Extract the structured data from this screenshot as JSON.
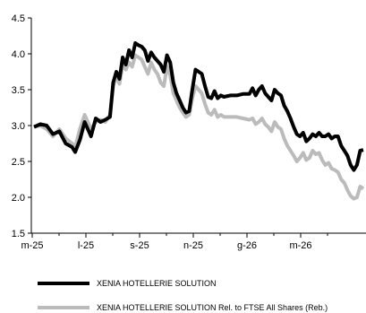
{
  "chart_data": {
    "type": "line",
    "title": "",
    "xlabel": "",
    "ylabel": "",
    "ylim": [
      1.5,
      4.5
    ],
    "yticks": [
      "1.5",
      "2.0",
      "2.5",
      "3.0",
      "3.5",
      "4.0",
      "4.5"
    ],
    "xticks": [
      "m-25",
      "l-25",
      "s-25",
      "n-25",
      "g-26",
      "m-26"
    ],
    "grid": false,
    "legend_position": "bottom",
    "colors": {
      "series_0": "#000000",
      "series_1": "#bbbbbb"
    },
    "series": [
      {
        "name": "XENIA HOTELLERIE SOLUTION",
        "points": [
          [
            0.0,
            2.98
          ],
          [
            2.0,
            3.02
          ],
          [
            4.0,
            3.0
          ],
          [
            6.0,
            2.88
          ],
          [
            8.0,
            2.92
          ],
          [
            10.0,
            2.75
          ],
          [
            12.0,
            2.7
          ],
          [
            13.0,
            2.63
          ],
          [
            14.5,
            2.8
          ],
          [
            16.0,
            3.05
          ],
          [
            18.0,
            2.85
          ],
          [
            19.5,
            3.1
          ],
          [
            21.0,
            3.05
          ],
          [
            22.5,
            3.08
          ],
          [
            24.0,
            3.12
          ],
          [
            25.0,
            3.6
          ],
          [
            26.0,
            3.75
          ],
          [
            27.0,
            3.65
          ],
          [
            28.0,
            3.95
          ],
          [
            29.0,
            3.85
          ],
          [
            30.0,
            4.05
          ],
          [
            31.0,
            3.95
          ],
          [
            32.0,
            4.15
          ],
          [
            33.0,
            4.12
          ],
          [
            34.0,
            4.1
          ],
          [
            35.0,
            4.05
          ],
          [
            36.0,
            3.9
          ],
          [
            37.0,
            4.02
          ],
          [
            38.0,
            3.95
          ],
          [
            39.0,
            3.9
          ],
          [
            40.0,
            3.85
          ],
          [
            41.0,
            3.75
          ],
          [
            42.0,
            3.98
          ],
          [
            43.0,
            3.88
          ],
          [
            44.0,
            3.6
          ],
          [
            45.0,
            3.45
          ],
          [
            46.0,
            3.35
          ],
          [
            47.0,
            3.25
          ],
          [
            48.0,
            3.18
          ],
          [
            49.0,
            3.2
          ],
          [
            50.0,
            3.5
          ],
          [
            51.0,
            3.78
          ],
          [
            52.0,
            3.75
          ],
          [
            53.0,
            3.72
          ],
          [
            54.0,
            3.55
          ],
          [
            55.0,
            3.4
          ],
          [
            56.0,
            3.38
          ],
          [
            57.0,
            3.48
          ],
          [
            58.0,
            3.38
          ],
          [
            59.0,
            3.42
          ],
          [
            60.0,
            3.4
          ],
          [
            62.0,
            3.42
          ],
          [
            64.0,
            3.42
          ],
          [
            66.0,
            3.44
          ],
          [
            68.0,
            3.44
          ],
          [
            69.0,
            3.52
          ],
          [
            70.0,
            3.42
          ],
          [
            71.0,
            3.5
          ],
          [
            72.0,
            3.55
          ],
          [
            73.0,
            3.45
          ],
          [
            74.0,
            3.4
          ],
          [
            75.0,
            3.35
          ],
          [
            76.0,
            3.5
          ],
          [
            77.0,
            3.45
          ],
          [
            78.0,
            3.42
          ],
          [
            79.0,
            3.28
          ],
          [
            80.0,
            3.2
          ],
          [
            81.0,
            3.1
          ],
          [
            82.0,
            2.98
          ],
          [
            83.0,
            2.88
          ],
          [
            84.0,
            2.85
          ],
          [
            85.0,
            2.9
          ],
          [
            86.0,
            2.78
          ],
          [
            87.0,
            2.82
          ],
          [
            88.0,
            2.88
          ],
          [
            89.0,
            2.85
          ],
          [
            90.0,
            2.9
          ],
          [
            91.0,
            2.85
          ],
          [
            92.0,
            2.85
          ],
          [
            93.0,
            2.88
          ],
          [
            94.0,
            2.82
          ],
          [
            95.0,
            2.85
          ],
          [
            96.0,
            2.85
          ],
          [
            97.0,
            2.72
          ],
          [
            98.0,
            2.65
          ],
          [
            99.0,
            2.58
          ],
          [
            100.0,
            2.45
          ],
          [
            101.0,
            2.38
          ],
          [
            102.0,
            2.45
          ],
          [
            103.0,
            2.65
          ],
          [
            104.0,
            2.66
          ]
        ]
      },
      {
        "name": "XENIA HOTELLERIE SOLUTION Rel. to FTSE All Shares (Reb.)",
        "points": [
          [
            0.0,
            2.98
          ],
          [
            2.0,
            3.0
          ],
          [
            4.0,
            2.95
          ],
          [
            6.0,
            2.85
          ],
          [
            8.0,
            2.95
          ],
          [
            10.0,
            2.82
          ],
          [
            12.0,
            2.75
          ],
          [
            13.0,
            2.7
          ],
          [
            14.5,
            2.95
          ],
          [
            16.0,
            3.15
          ],
          [
            18.0,
            2.95
          ],
          [
            19.5,
            3.05
          ],
          [
            21.0,
            3.08
          ],
          [
            22.5,
            3.05
          ],
          [
            24.0,
            3.15
          ],
          [
            25.0,
            3.55
          ],
          [
            26.0,
            3.68
          ],
          [
            27.0,
            3.58
          ],
          [
            28.0,
            3.85
          ],
          [
            29.0,
            3.78
          ],
          [
            30.0,
            3.88
          ],
          [
            31.0,
            3.82
          ],
          [
            32.0,
            3.98
          ],
          [
            33.0,
            3.95
          ],
          [
            34.0,
            3.92
          ],
          [
            35.0,
            3.82
          ],
          [
            36.0,
            3.72
          ],
          [
            37.0,
            3.88
          ],
          [
            38.0,
            3.78
          ],
          [
            39.0,
            3.72
          ],
          [
            40.0,
            3.6
          ],
          [
            41.0,
            3.55
          ],
          [
            42.0,
            3.82
          ],
          [
            43.0,
            3.7
          ],
          [
            44.0,
            3.45
          ],
          [
            45.0,
            3.35
          ],
          [
            46.0,
            3.25
          ],
          [
            47.0,
            3.18
          ],
          [
            48.0,
            3.12
          ],
          [
            49.0,
            3.15
          ],
          [
            50.0,
            3.38
          ],
          [
            51.0,
            3.55
          ],
          [
            52.0,
            3.5
          ],
          [
            53.0,
            3.45
          ],
          [
            54.0,
            3.3
          ],
          [
            55.0,
            3.18
          ],
          [
            56.0,
            3.15
          ],
          [
            57.0,
            3.22
          ],
          [
            58.0,
            3.12
          ],
          [
            59.0,
            3.15
          ],
          [
            60.0,
            3.12
          ],
          [
            62.0,
            3.12
          ],
          [
            64.0,
            3.12
          ],
          [
            66.0,
            3.1
          ],
          [
            68.0,
            3.08
          ],
          [
            69.0,
            3.1
          ],
          [
            70.0,
            3.02
          ],
          [
            71.0,
            3.05
          ],
          [
            72.0,
            3.1
          ],
          [
            73.0,
            3.02
          ],
          [
            74.0,
            2.98
          ],
          [
            75.0,
            2.92
          ],
          [
            76.0,
            3.05
          ],
          [
            77.0,
            2.98
          ],
          [
            78.0,
            2.95
          ],
          [
            79.0,
            2.82
          ],
          [
            80.0,
            2.72
          ],
          [
            81.0,
            2.65
          ],
          [
            82.0,
            2.58
          ],
          [
            83.0,
            2.5
          ],
          [
            84.0,
            2.55
          ],
          [
            85.0,
            2.62
          ],
          [
            86.0,
            2.52
          ],
          [
            87.0,
            2.55
          ],
          [
            88.0,
            2.65
          ],
          [
            89.0,
            2.6
          ],
          [
            90.0,
            2.62
          ],
          [
            91.0,
            2.52
          ],
          [
            92.0,
            2.45
          ],
          [
            93.0,
            2.48
          ],
          [
            94.0,
            2.4
          ],
          [
            95.0,
            2.38
          ],
          [
            96.0,
            2.35
          ],
          [
            97.0,
            2.25
          ],
          [
            98.0,
            2.2
          ],
          [
            99.0,
            2.1
          ],
          [
            100.0,
            2.02
          ],
          [
            101.0,
            1.98
          ],
          [
            102.0,
            2.0
          ],
          [
            103.0,
            2.15
          ],
          [
            104.0,
            2.12
          ]
        ]
      }
    ]
  }
}
